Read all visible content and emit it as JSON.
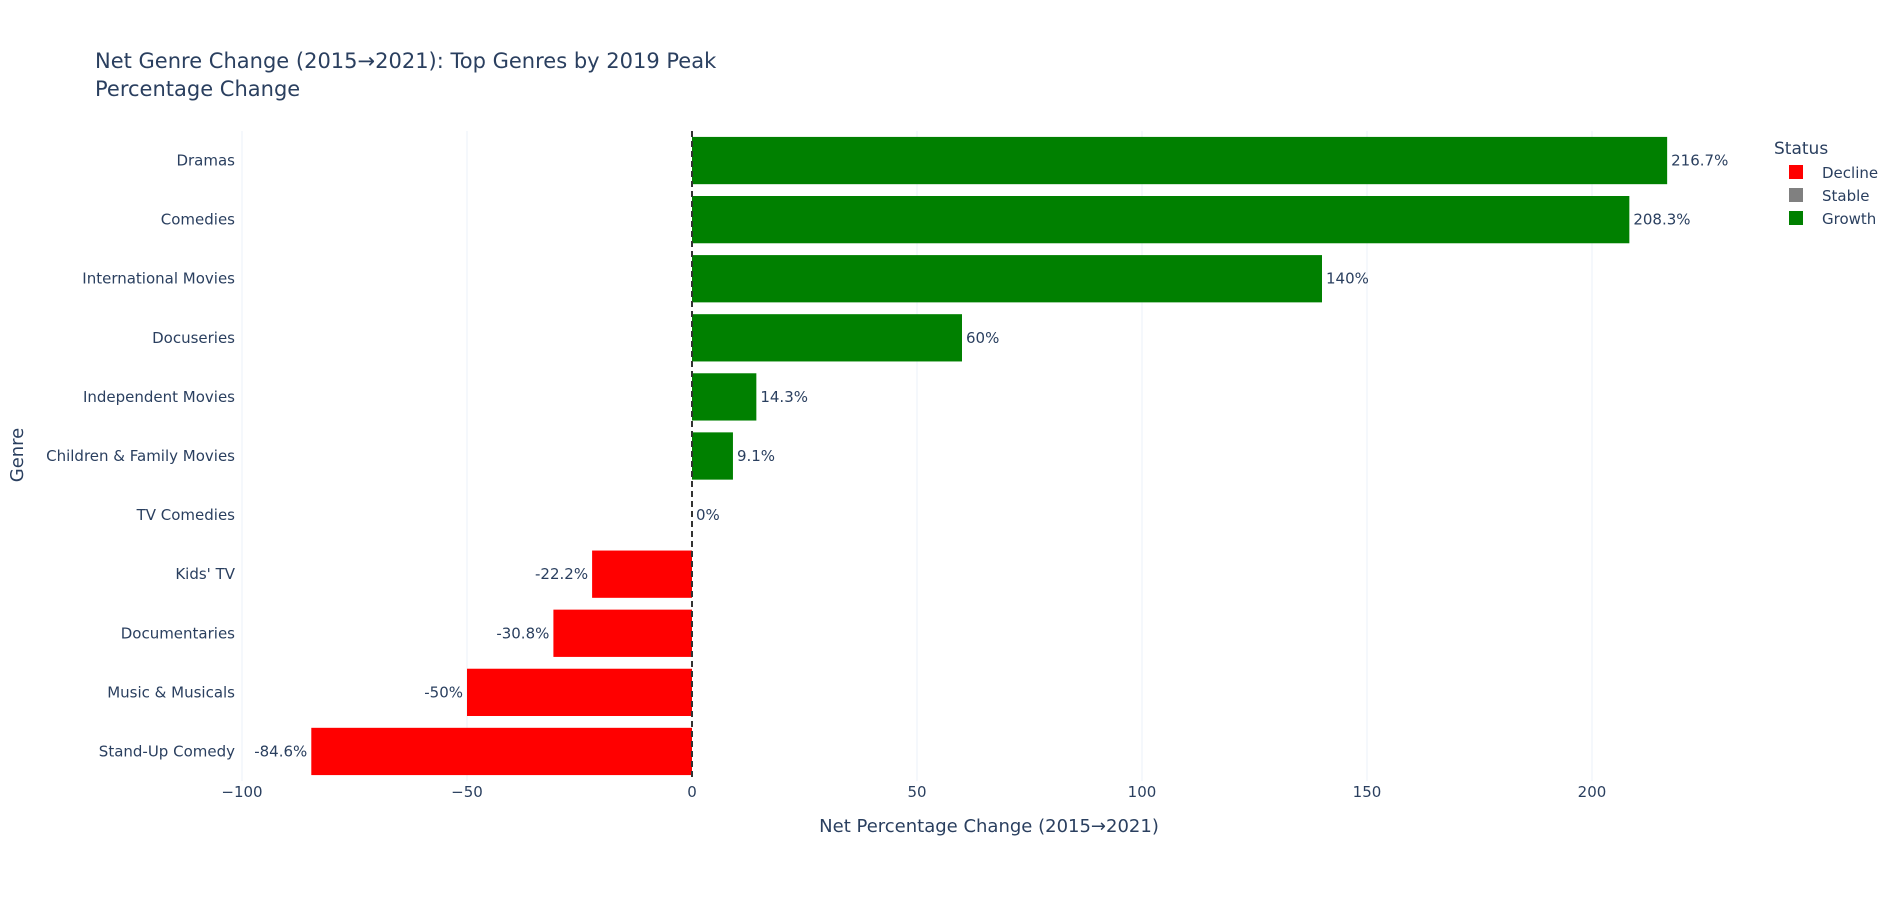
{
  "chart_data": {
    "type": "bar",
    "orientation": "horizontal",
    "title_lines": [
      "Net Genre Change (2015→2021): Top Genres by 2019 Peak",
      "Percentage Change"
    ],
    "xlabel": "Net Percentage Change (2015→2021)",
    "ylabel": "Genre",
    "xlim": [
      -100,
      240
    ],
    "x_ticks": [
      -100,
      -50,
      0,
      50,
      100,
      150,
      200
    ],
    "x_tick_labels": [
      "−100",
      "−50",
      "0",
      "50",
      "100",
      "150",
      "200"
    ],
    "grid": true,
    "zero_line": "dashed",
    "legend": {
      "title": "Status",
      "placement": "top-right",
      "entries": [
        {
          "name": "Decline",
          "color": "#ff0000"
        },
        {
          "name": "Stable",
          "color": "#808080"
        },
        {
          "name": "Growth",
          "color": "#008000"
        }
      ]
    },
    "categories": [
      "Dramas",
      "Comedies",
      "International Movies",
      "Docuseries",
      "Independent Movies",
      "Children & Family Movies",
      "TV Comedies",
      "Kids' TV",
      "Documentaries",
      "Music & Musicals",
      "Stand-Up Comedy"
    ],
    "values": [
      216.7,
      208.3,
      140,
      60,
      14.3,
      9.1,
      0,
      -22.2,
      -30.8,
      -50,
      -84.6
    ],
    "value_labels": [
      "216.7%",
      "208.3%",
      "140%",
      "60%",
      "14.3%",
      "9.1%",
      "0%",
      "-22.2%",
      "-30.8%",
      "-50%",
      "-84.6%"
    ],
    "status": [
      "Growth",
      "Growth",
      "Growth",
      "Growth",
      "Growth",
      "Growth",
      "Stable",
      "Decline",
      "Decline",
      "Decline",
      "Decline"
    ]
  }
}
